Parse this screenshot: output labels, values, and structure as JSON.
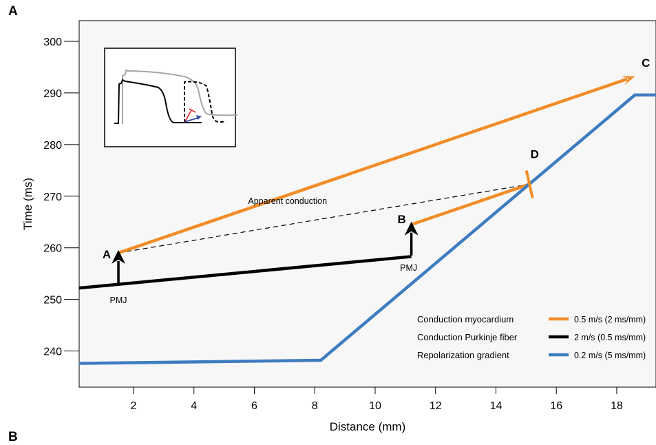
{
  "panel_label": "A",
  "panel_label_next": "B",
  "colors": {
    "myocardium": "#F28C28",
    "purkinje": "#000000",
    "repolarization": "#3E7CC0",
    "plot_bg": "#F7F7F7",
    "inset_gray": "#A6A6A6",
    "inset_red": "#E0303A",
    "inset_blue": "#2F4FA0"
  },
  "chart_data": {
    "type": "line",
    "xlabel": "Distance (mm)",
    "ylabel": "Time (ms)",
    "xlim": [
      0.2,
      19.3
    ],
    "ylim": [
      233,
      304
    ],
    "x_ticks": [
      2,
      4,
      6,
      8,
      10,
      12,
      14,
      16,
      18
    ],
    "y_ticks": [
      240,
      250,
      260,
      270,
      280,
      290,
      300
    ],
    "grid": false,
    "series": [
      {
        "name": "Conduction myocardium",
        "rate": "0.5 m/s (2 ms/mm)",
        "color": "#F28C28",
        "segments": [
          {
            "x": [
              1.5,
              18.6
            ],
            "y": [
              259,
              293.2
            ],
            "arrow_end": true
          },
          {
            "x": [
              11.2,
              15.1
            ],
            "y": [
              264.5,
              272.3
            ]
          }
        ]
      },
      {
        "name": "Conduction Purkinje fiber",
        "rate": "2 m/s (0.5 ms/mm)",
        "color": "#000000",
        "segments": [
          {
            "x": [
              0.2,
              11.2
            ],
            "y": [
              252.2,
              258.3
            ]
          }
        ]
      },
      {
        "name": "Repolarization gradient",
        "rate": "0.2 m/s (5 ms/mm)",
        "color": "#3E7CC0",
        "segments": [
          {
            "x": [
              0.2,
              8.2,
              18.6,
              19.3
            ],
            "y": [
              237.6,
              238.2,
              289.6,
              289.6
            ]
          }
        ]
      }
    ],
    "dashed_line": {
      "label": "Apparent conduction",
      "x": [
        1.5,
        15.1
      ],
      "y": [
        259,
        272.3
      ]
    },
    "points": [
      {
        "label": "A",
        "x": 1.5,
        "y": 259
      },
      {
        "label": "B",
        "x": 11.2,
        "y": 264.5
      },
      {
        "label": "C",
        "x": 18.6,
        "y": 293.2
      },
      {
        "label": "D",
        "x": 15.1,
        "y": 272.3
      }
    ],
    "pmj_arrows": [
      {
        "label": "PMJ",
        "x": 1.5,
        "y_from": 253,
        "y_to": 258.5
      },
      {
        "label": "PMJ",
        "x": 11.2,
        "y_from": 258.5,
        "y_to": 264
      }
    ],
    "legend_position": "bottom-right"
  }
}
